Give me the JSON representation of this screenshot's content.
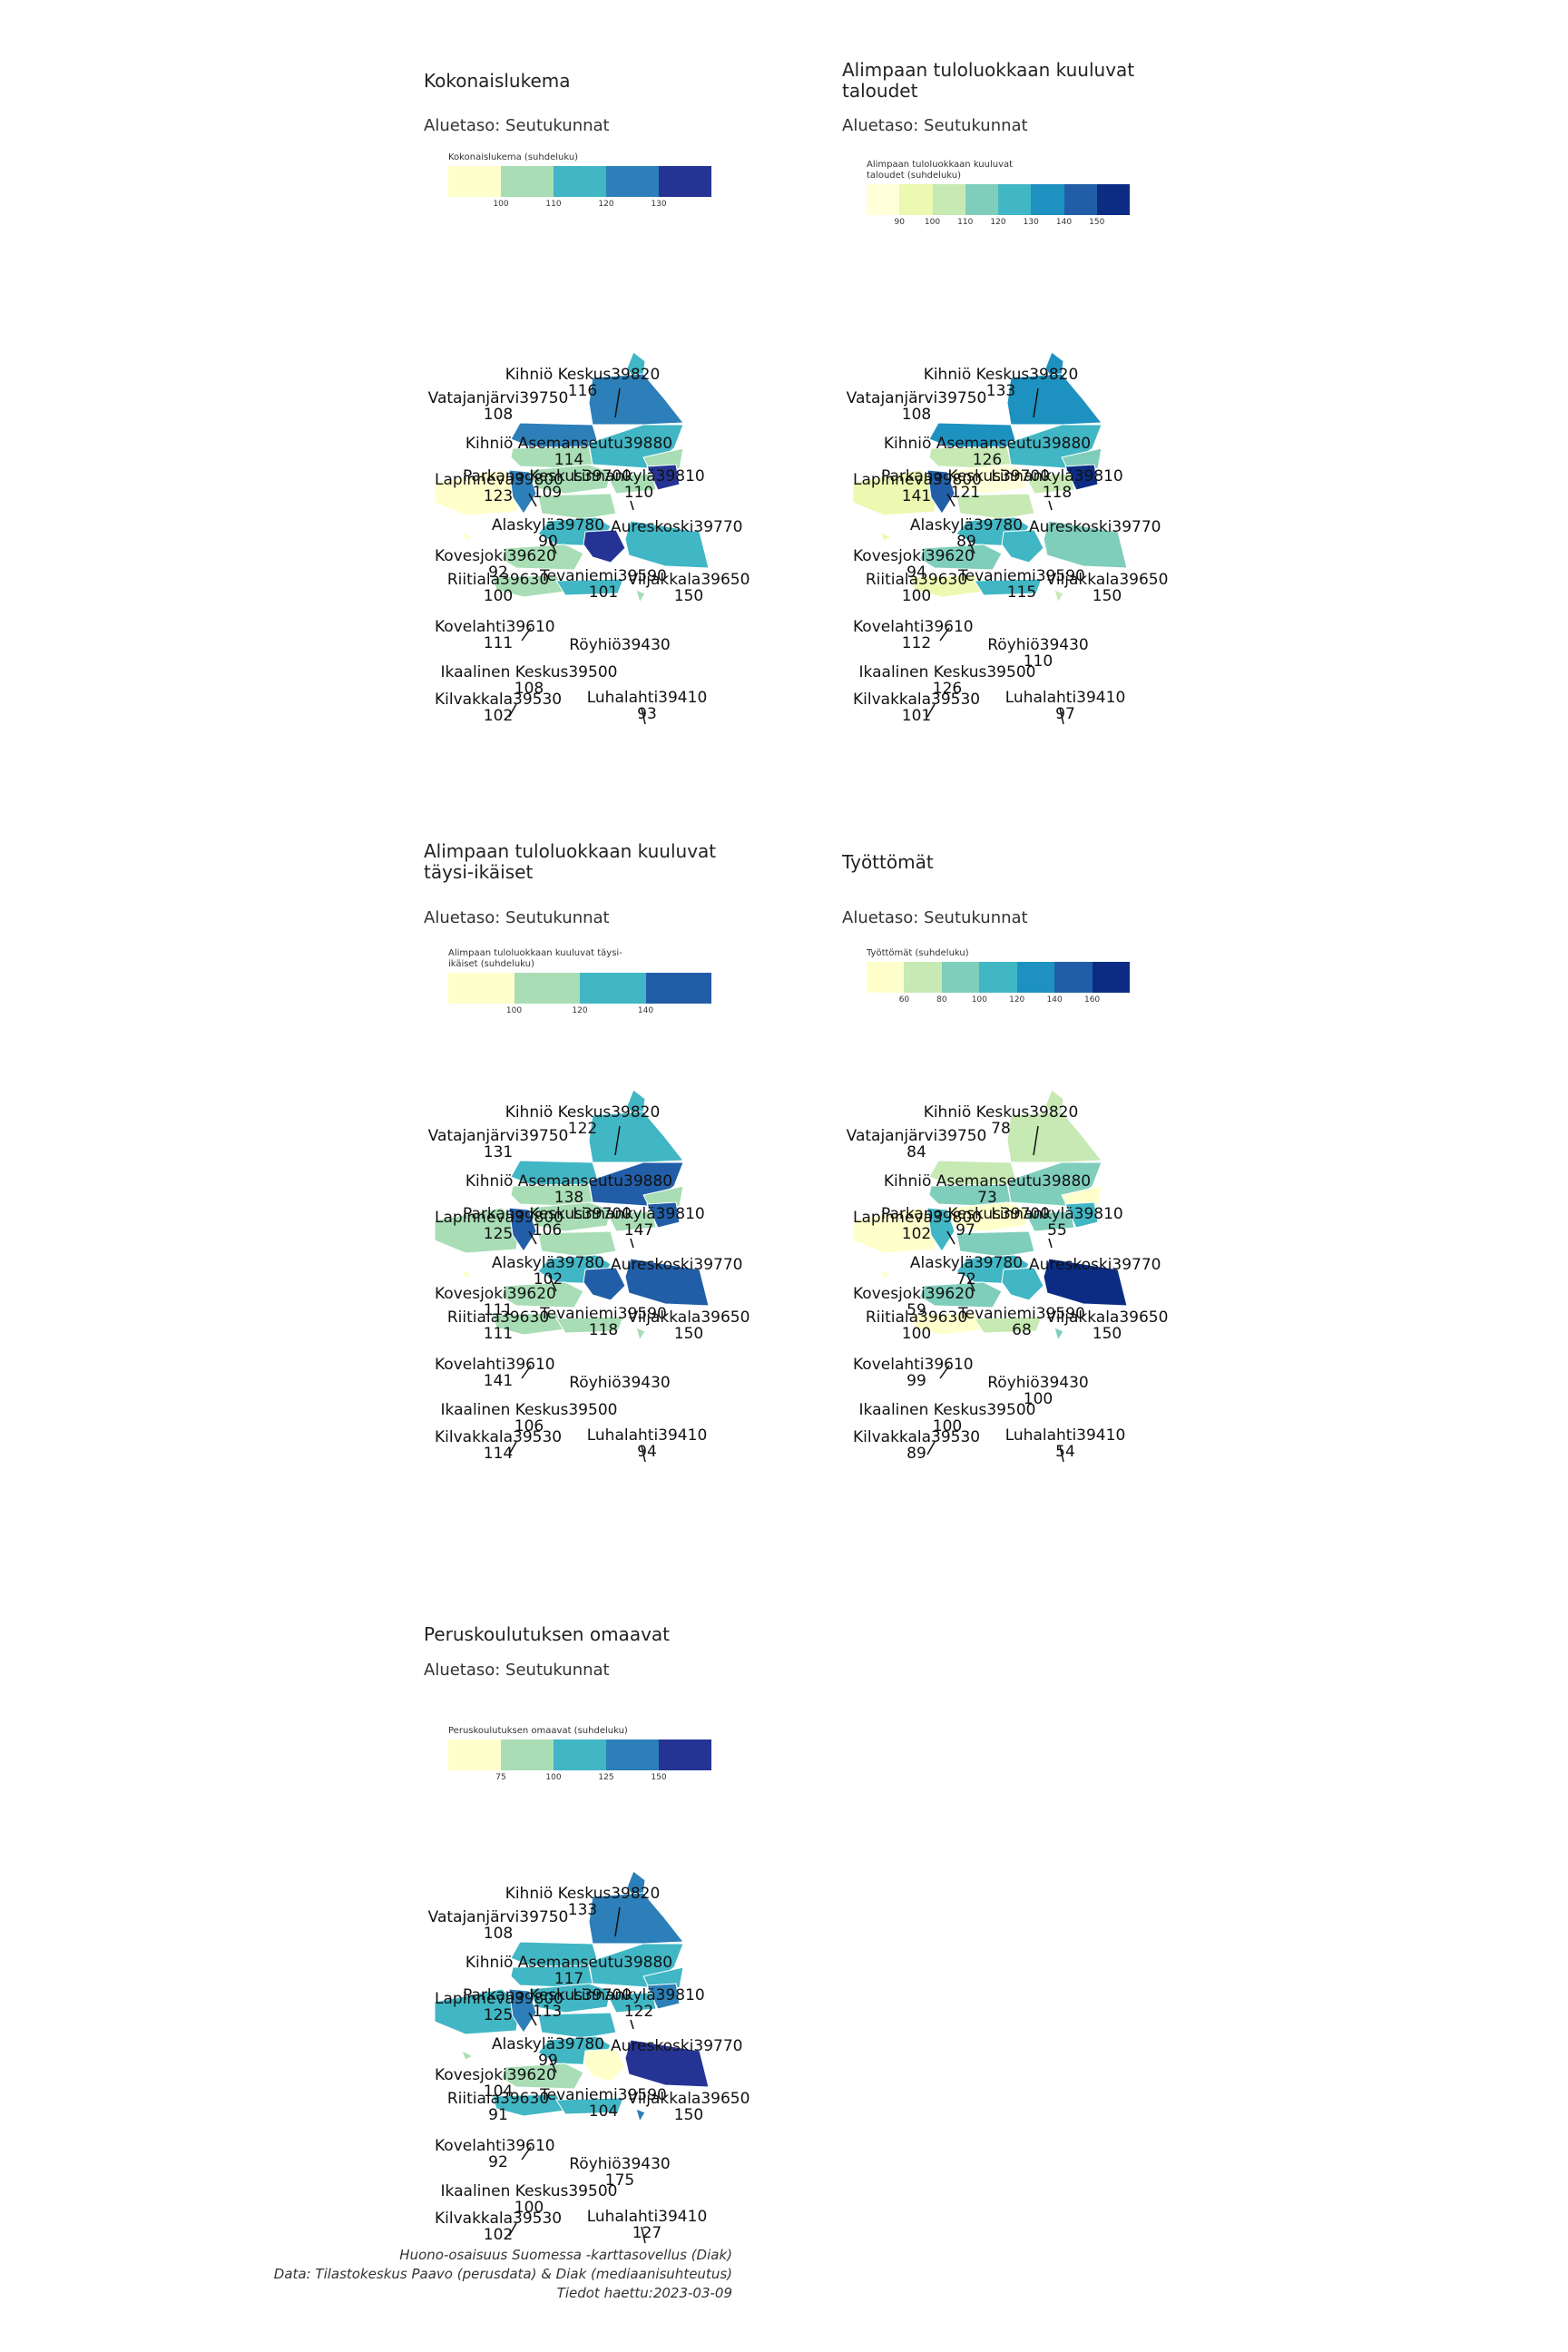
{
  "colors": {
    "ramp_5": [
      "#ffffcc",
      "#a8ddb5",
      "#41b6c4",
      "#2c7fb8",
      "#253494"
    ],
    "ramp_8": [
      "#ffffd9",
      "#edf8b1",
      "#c7e9b4",
      "#7fcdbb",
      "#41b6c4",
      "#1d91c0",
      "#225ea8",
      "#0c2c84"
    ],
    "ramp_4": [
      "#ffffcc",
      "#a8ddb5",
      "#41b6c4",
      "#225ea8"
    ],
    "ramp_7": [
      "#ffffcc",
      "#c7e9b4",
      "#7fcdbb",
      "#41b6c4",
      "#1d91c0",
      "#225ea8",
      "#0c2c84"
    ]
  },
  "panels": [
    {
      "title": "Kokonaislukema",
      "subtitle": "Aluetaso: Seutukunnat",
      "legend_title": "Kokonaislukema (suhdeluku)",
      "legend_ticks": [
        "100",
        "110",
        "120",
        "130"
      ],
      "ramp": "ramp_5",
      "labels": [
        {
          "name": "Kihniö Keskus39820",
          "value": "116"
        },
        {
          "name": "Vatajanjärvi39750",
          "value": "108"
        },
        {
          "name": "Kihniö Asemanseutu39880",
          "value": "114"
        },
        {
          "name": "Lapinneva39800",
          "value": "123"
        },
        {
          "name": "Parkano Keskus39700",
          "value": "109"
        },
        {
          "name": "Linnankylä39810",
          "value": "110"
        },
        {
          "name": "Aureskoski39770",
          "value": ""
        },
        {
          "name": "Alaskylä39780",
          "value": "90"
        },
        {
          "name": "Kovesjoki39620",
          "value": "92"
        },
        {
          "name": "Riitiala39630",
          "value": "100"
        },
        {
          "name": "Tevaniemi39590",
          "value": "101"
        },
        {
          "name": "Viljakkala39650",
          "value": "150"
        },
        {
          "name": "Kovelahti39610",
          "value": "111"
        },
        {
          "name": "Röyhiö39430",
          "value": ""
        },
        {
          "name": "Ikaalinen Keskus39500",
          "value": "108"
        },
        {
          "name": "Kilvakkala39530",
          "value": "102"
        },
        {
          "name": "Luhalahti39410",
          "value": "93"
        }
      ],
      "region_colors": [
        2,
        3,
        3,
        1,
        2,
        1,
        0,
        3,
        4,
        1,
        1,
        1,
        2,
        2,
        4,
        1,
        1,
        2,
        0,
        1
      ]
    },
    {
      "title": "Alimpaan tuloluokkaan kuuluvat taloudet",
      "subtitle": "Aluetaso: Seutukunnat",
      "legend_title": "Alimpaan tuloluokkaan kuuluvat taloudet (suhdeluku)",
      "legend_ticks": [
        "90",
        "100",
        "110",
        "120",
        "130",
        "140",
        "150"
      ],
      "ramp": "ramp_8",
      "labels": [
        {
          "name": "Kihniö Keskus39820",
          "value": "133"
        },
        {
          "name": "Vatajanjärvi39750",
          "value": "108"
        },
        {
          "name": "Kihniö Asemanseutu39880",
          "value": "126"
        },
        {
          "name": "Lapinneva39800",
          "value": "141"
        },
        {
          "name": "Parkano Keskus39700",
          "value": "121"
        },
        {
          "name": "Linnankylä39810",
          "value": "118"
        },
        {
          "name": "Aureskoski39770",
          "value": ""
        },
        {
          "name": "Alaskylä39780",
          "value": "89"
        },
        {
          "name": "Kovesjoki39620",
          "value": "94"
        },
        {
          "name": "Riitiala39630",
          "value": "100"
        },
        {
          "name": "Tevaniemi39590",
          "value": "115"
        },
        {
          "name": "Viljakkala39650",
          "value": "150"
        },
        {
          "name": "Kovelahti39610",
          "value": "112"
        },
        {
          "name": "Röyhiö39430",
          "value": "110"
        },
        {
          "name": "Ikaalinen Keskus39500",
          "value": "126"
        },
        {
          "name": "Kilvakkala39530",
          "value": "101"
        },
        {
          "name": "Luhalahti39410",
          "value": "97"
        }
      ],
      "region_colors": [
        5,
        5,
        5,
        2,
        4,
        3,
        1,
        6,
        7,
        0,
        2,
        2,
        4,
        3,
        4,
        3,
        1,
        4,
        1,
        2
      ]
    },
    {
      "title": "Alimpaan tuloluokkaan kuuluvat täysi-ikäiset",
      "subtitle": "Aluetaso: Seutukunnat",
      "legend_title": "Alimpaan tuloluokkaan kuuluvat täysi-ikäiset (suhdeluku)",
      "legend_ticks": [
        "100",
        "120",
        "140"
      ],
      "ramp": "ramp_4",
      "labels": [
        {
          "name": "Kihniö Keskus39820",
          "value": "122"
        },
        {
          "name": "Vatajanjärvi39750",
          "value": "131"
        },
        {
          "name": "Kihniö Asemanseutu39880",
          "value": "138"
        },
        {
          "name": "Lapinneva39800",
          "value": "125"
        },
        {
          "name": "Parkano Keskus39700",
          "value": "106"
        },
        {
          "name": "Linnankylä39810",
          "value": "147"
        },
        {
          "name": "Aureskoski39770",
          "value": ""
        },
        {
          "name": "Alaskylä39780",
          "value": "102"
        },
        {
          "name": "Kovesjoki39620",
          "value": "111"
        },
        {
          "name": "Riitiala39630",
          "value": "111"
        },
        {
          "name": "Tevaniemi39590",
          "value": "118"
        },
        {
          "name": "Viljakkala39650",
          "value": "150"
        },
        {
          "name": "Kovelahti39610",
          "value": "141"
        },
        {
          "name": "Röyhiö39430",
          "value": ""
        },
        {
          "name": "Ikaalinen Keskus39500",
          "value": "106"
        },
        {
          "name": "Kilvakkala39530",
          "value": "114"
        },
        {
          "name": "Luhalahti39410",
          "value": "94"
        }
      ],
      "region_colors": [
        2,
        2,
        2,
        1,
        3,
        1,
        1,
        3,
        3,
        1,
        1,
        1,
        2,
        3,
        3,
        1,
        1,
        1,
        0,
        1
      ]
    },
    {
      "title": "Työttömät",
      "subtitle": "Aluetaso: Seutukunnat",
      "legend_title": "Työttömät (suhdeluku)",
      "legend_ticks": [
        "60",
        "80",
        "100",
        "120",
        "140",
        "160"
      ],
      "ramp": "ramp_7",
      "labels": [
        {
          "name": "Kihniö Keskus39820",
          "value": "78"
        },
        {
          "name": "Vatajanjärvi39750",
          "value": "84"
        },
        {
          "name": "Kihniö Asemanseutu39880",
          "value": "73"
        },
        {
          "name": "Lapinneva39800",
          "value": "102"
        },
        {
          "name": "Parkano Keskus39700",
          "value": "97"
        },
        {
          "name": "Linnankylä39810",
          "value": "55"
        },
        {
          "name": "Aureskoski39770",
          "value": ""
        },
        {
          "name": "Alaskylä39780",
          "value": "72"
        },
        {
          "name": "Kovesjoki39620",
          "value": "59"
        },
        {
          "name": "Riitiala39630",
          "value": "100"
        },
        {
          "name": "Tevaniemi39590",
          "value": "68"
        },
        {
          "name": "Viljakkala39650",
          "value": "150"
        },
        {
          "name": "Kovelahti39610",
          "value": "99"
        },
        {
          "name": "Röyhiö39430",
          "value": "100"
        },
        {
          "name": "Ikaalinen Keskus39500",
          "value": "100"
        },
        {
          "name": "Kilvakkala39530",
          "value": "89"
        },
        {
          "name": "Luhalahti39410",
          "value": "54"
        }
      ],
      "region_colors": [
        1,
        1,
        1,
        2,
        2,
        0,
        0,
        3,
        3,
        0,
        2,
        2,
        3,
        6,
        3,
        2,
        0,
        1,
        0,
        2
      ]
    },
    {
      "title": "Peruskoulutuksen omaavat",
      "subtitle": "Aluetaso: Seutukunnat",
      "legend_title": "Peruskoulutuksen omaavat (suhdeluku)",
      "legend_ticks": [
        "75",
        "100",
        "125",
        "150"
      ],
      "ramp": "ramp_5",
      "labels": [
        {
          "name": "Kihniö Keskus39820",
          "value": "133"
        },
        {
          "name": "Vatajanjärvi39750",
          "value": "108"
        },
        {
          "name": "Kihniö Asemanseutu39880",
          "value": "117"
        },
        {
          "name": "Lapinneva39800",
          "value": "125"
        },
        {
          "name": "Parkano Keskus39700",
          "value": "113"
        },
        {
          "name": "Linnankylä39810",
          "value": "122"
        },
        {
          "name": "Aureskoski39770",
          "value": ""
        },
        {
          "name": "Alaskylä39780",
          "value": "99"
        },
        {
          "name": "Kovesjoki39620",
          "value": "104"
        },
        {
          "name": "Riitiala39630",
          "value": "91"
        },
        {
          "name": "Tevaniemi39590",
          "value": "104"
        },
        {
          "name": "Viljakkala39650",
          "value": "150"
        },
        {
          "name": "Kovelahti39610",
          "value": "92"
        },
        {
          "name": "Röyhiö39430",
          "value": "175"
        },
        {
          "name": "Ikaalinen Keskus39500",
          "value": "100"
        },
        {
          "name": "Kilvakkala39530",
          "value": "102"
        },
        {
          "name": "Luhalahti39410",
          "value": "127"
        }
      ],
      "region_colors": [
        3,
        3,
        2,
        2,
        2,
        2,
        2,
        3,
        3,
        2,
        2,
        2,
        2,
        4,
        0,
        1,
        2,
        2,
        1,
        3
      ]
    }
  ],
  "caption": {
    "line1": "Huono-osaisuus Suomessa -karttasovellus (Diak)",
    "line2": "Data: Tilastokeskus Paavo (perusdata) & Diak (mediaanisuhteutus)",
    "line3": "Tiedot haettu:2023-03-09"
  }
}
